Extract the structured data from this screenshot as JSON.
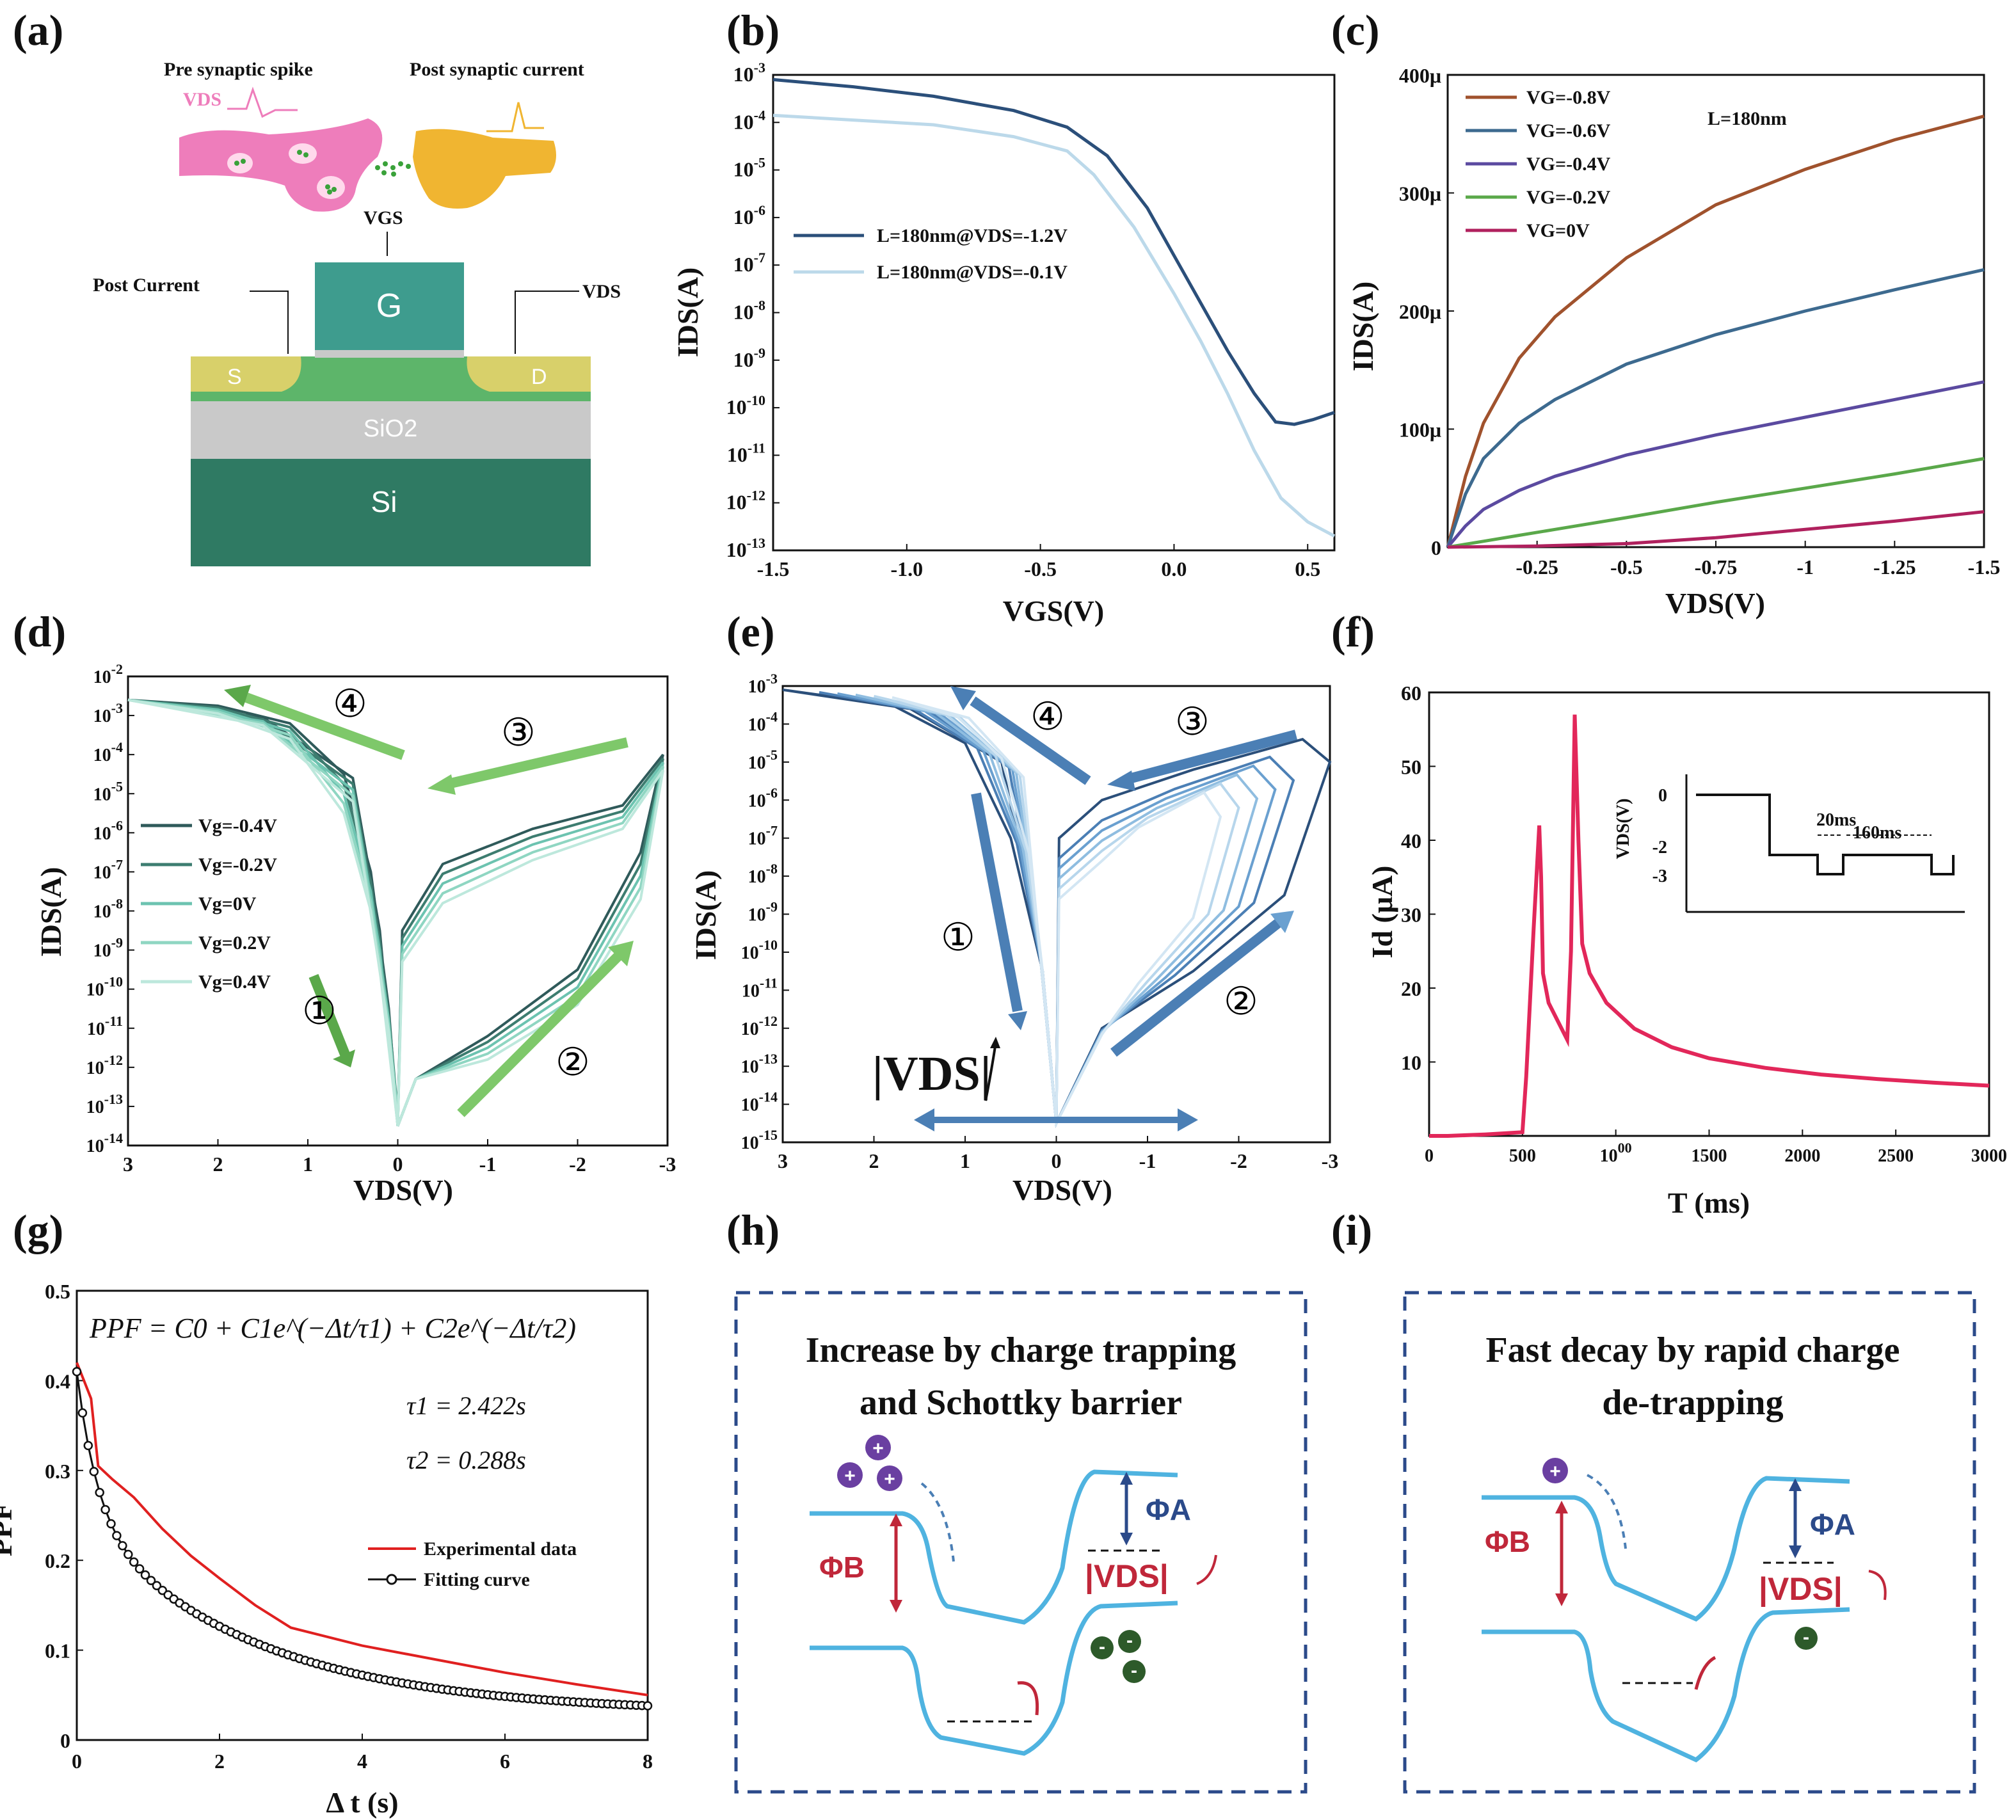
{
  "colors": {
    "pink": "#ee7dbb",
    "yellow": "#f0b531",
    "teal_gate": "#3e9c8e",
    "green_channel": "#5db56a",
    "sd_yellow": "#d8d06a",
    "oxide": "#c9c9c9",
    "silicon": "#2f7a63",
    "navy": "#2b4f7a",
    "light_blue": "#bcd9ea",
    "band": "#4fb3e0",
    "red": "#c0273a",
    "purple": "#6a3fa1",
    "dark_green": "#2d5a2a",
    "crimson": "#e2275a"
  },
  "panel_a": {
    "letter": "(a)",
    "pre_label": "Pre synaptic spike",
    "post_label": "Post synaptic current",
    "vds_small": "VDS",
    "vgs": "VGS",
    "post_current": "Post Current",
    "vds": "VDS",
    "gate": "G",
    "source": "S",
    "drain": "D",
    "oxide": "SiO2",
    "substrate": "Si"
  },
  "panel_b": {
    "letter": "(b)",
    "ylabel": "IDS(A)",
    "xlabel": "VGS(V)",
    "x_ticks": [
      "-1.5",
      "-1.0",
      "-0.5",
      "0.0",
      "0.5"
    ],
    "y_ticks": [
      "10-3",
      "10-4",
      "10-5",
      "10-6",
      "10-7",
      "10-8",
      "10-9",
      "10-10",
      "10-11",
      "10-12",
      "10-13"
    ],
    "legend": [
      "L=180nm@VDS=-1.2V",
      "L=180nm@VDS=-0.1V"
    ]
  },
  "panel_c": {
    "letter": "(c)",
    "ylabel": "IDS(A)",
    "xlabel": "VDS(V)",
    "x_ticks": [
      "-0.25",
      "-0.5",
      "-0.75",
      "-1",
      "-1.25",
      "-1.5"
    ],
    "y_ticks": [
      "0",
      "100μ",
      "200μ",
      "300μ",
      "400μ"
    ],
    "legend": [
      "VG=-0.8V",
      "VG=-0.6V",
      "VG=-0.4V",
      "VG=-0.2V",
      "VG=0V"
    ],
    "note": "L=180nm"
  },
  "panel_d": {
    "letter": "(d)",
    "ylabel": "IDS(A)",
    "xlabel": "VDS(V)",
    "x_ticks": [
      "3",
      "2",
      "1",
      "0",
      "-1",
      "-2",
      "-3"
    ],
    "y_ticks": [
      "10-2",
      "10-3",
      "10-4",
      "10-5",
      "10-6",
      "10-7",
      "10-8",
      "10-9",
      "10-10",
      "10-11",
      "10-12",
      "10-13",
      "10-14"
    ],
    "legend": [
      "Vg=-0.4V",
      "Vg=-0.2V",
      "Vg=0V",
      "Vg=0.2V",
      "Vg=0.4V"
    ],
    "markers": [
      "①",
      "②",
      "③",
      "④"
    ]
  },
  "panel_e": {
    "letter": "(e)",
    "ylabel": "IDS(A)",
    "xlabel": "VDS(V)",
    "x_ticks": [
      "3",
      "2",
      "1",
      "0",
      "-1",
      "-2",
      "-3"
    ],
    "y_ticks": [
      "10-3",
      "10-4",
      "10-5",
      "10-6",
      "10-7",
      "10-8",
      "10-9",
      "10-10",
      "10-11",
      "10-12",
      "10-13",
      "10-14",
      "10-15"
    ],
    "markers": [
      "①",
      "②",
      "③",
      "④"
    ],
    "vds_note": "|VDS|"
  },
  "panel_f": {
    "letter": "(f)",
    "ylabel": "Id (μA)",
    "xlabel": "T (ms)",
    "x_ticks": [
      "0",
      "500",
      "1000",
      "1500",
      "2000",
      "2500",
      "3000"
    ],
    "y_ticks": [
      "10",
      "20",
      "30",
      "40",
      "50",
      "60"
    ],
    "inset_ylabel": "VDS(V)",
    "inset_y_ticks": [
      "0",
      "-2",
      "-3"
    ],
    "inset_w1": "20ms",
    "inset_w2": "160ms"
  },
  "panel_g": {
    "letter": "(g)",
    "ylabel": "PPF",
    "xlabel": "Δ t (s)",
    "x_ticks": [
      "0",
      "2",
      "4",
      "6",
      "8"
    ],
    "y_ticks": [
      "0",
      "0.1",
      "0.2",
      "0.3",
      "0.4",
      "0.5"
    ],
    "formula": "PPF = C0 + C1e^(−Δt/τ1) + C2e^(−Δt/τ2)",
    "tau1": "τ1 = 2.422s",
    "tau2": "τ2 = 0.288s",
    "legend": [
      "Experimental data",
      "Fitting curve"
    ]
  },
  "panel_h": {
    "letter": "(h)",
    "title_l1": "Increase by charge trapping",
    "title_l2": "and Schottky barrier",
    "phi_b": "ΦB",
    "phi_a": "ΦA",
    "vds": "|VDS|"
  },
  "panel_i": {
    "letter": "(i)",
    "title_l1": "Fast decay by rapid charge",
    "title_l2": "de-trapping",
    "phi_b": "ΦB",
    "phi_a": "ΦA",
    "vds": "|VDS|"
  },
  "chart_data": [
    {
      "id": "b",
      "type": "line",
      "title": "",
      "xlabel": "VGS(V)",
      "ylabel": "IDS(A)",
      "xlim": [
        -1.5,
        0.6
      ],
      "ylim_log10": [
        -13,
        -3
      ],
      "series": [
        {
          "name": "L=180nm@VDS=-1.2V",
          "color": "#2b4f7a",
          "x": [
            -1.5,
            -1.2,
            -0.9,
            -0.6,
            -0.4,
            -0.25,
            -0.1,
            0.0,
            0.1,
            0.2,
            0.3,
            0.38,
            0.45,
            0.52,
            0.6
          ],
          "log10_y": [
            -3.1,
            -3.25,
            -3.45,
            -3.75,
            -4.1,
            -4.7,
            -5.8,
            -6.8,
            -7.8,
            -8.8,
            -9.7,
            -10.3,
            -10.35,
            -10.25,
            -10.1
          ]
        },
        {
          "name": "L=180nm@VDS=-0.1V",
          "color": "#bcd9ea",
          "x": [
            -1.5,
            -1.2,
            -0.9,
            -0.6,
            -0.4,
            -0.3,
            -0.15,
            0.0,
            0.1,
            0.2,
            0.3,
            0.4,
            0.5,
            0.6
          ],
          "log10_y": [
            -3.85,
            -3.95,
            -4.05,
            -4.3,
            -4.6,
            -5.1,
            -6.2,
            -7.6,
            -8.6,
            -9.7,
            -10.9,
            -11.9,
            -12.4,
            -12.7
          ]
        }
      ]
    },
    {
      "id": "c",
      "type": "line",
      "xlabel": "VDS(V)",
      "ylabel": "IDS(A)",
      "xlim": [
        0,
        -1.5
      ],
      "ylim_uA": [
        0,
        400
      ],
      "note": "L=180nm",
      "series": [
        {
          "name": "VG=-0.8V",
          "color": "#a0522d",
          "x": [
            0,
            -0.05,
            -0.1,
            -0.2,
            -0.3,
            -0.5,
            -0.75,
            -1.0,
            -1.25,
            -1.5
          ],
          "y_uA": [
            0,
            60,
            105,
            160,
            195,
            245,
            290,
            320,
            345,
            365
          ]
        },
        {
          "name": "VG=-0.6V",
          "color": "#3d6a8f",
          "x": [
            0,
            -0.05,
            -0.1,
            -0.2,
            -0.3,
            -0.5,
            -0.75,
            -1.0,
            -1.25,
            -1.5
          ],
          "y_uA": [
            0,
            45,
            75,
            105,
            125,
            155,
            180,
            200,
            218,
            235
          ]
        },
        {
          "name": "VG=-0.4V",
          "color": "#5b4aa0",
          "x": [
            0,
            -0.05,
            -0.1,
            -0.2,
            -0.3,
            -0.5,
            -0.75,
            -1.0,
            -1.25,
            -1.5
          ],
          "y_uA": [
            0,
            18,
            32,
            48,
            60,
            78,
            95,
            110,
            125,
            140
          ]
        },
        {
          "name": "VG=-0.2V",
          "color": "#5aa84a",
          "x": [
            0,
            -0.1,
            -0.2,
            -0.3,
            -0.5,
            -0.75,
            -1.0,
            -1.25,
            -1.5
          ],
          "y_uA": [
            0,
            5,
            10,
            15,
            25,
            38,
            50,
            62,
            75
          ]
        },
        {
          "name": "VG=0V",
          "color": "#b0215e",
          "x": [
            0,
            -0.25,
            -0.5,
            -0.75,
            -1.0,
            -1.25,
            -1.5
          ],
          "y_uA": [
            0,
            1,
            3,
            8,
            15,
            22,
            30
          ]
        }
      ]
    },
    {
      "id": "d",
      "type": "line",
      "xlabel": "VDS(V)",
      "ylabel": "IDS(A)",
      "xlim": [
        3,
        -3
      ],
      "ylim_log10": [
        -14,
        -2
      ],
      "series_names": [
        "Vg=-0.4V",
        "Vg=-0.2V",
        "Vg=0V",
        "Vg=0.2V",
        "Vg=0.4V"
      ]
    },
    {
      "id": "e",
      "type": "line",
      "xlabel": "VDS(V)",
      "ylabel": "IDS(A)",
      "xlim": [
        3,
        -3
      ],
      "ylim_log10": [
        -15,
        -3
      ]
    },
    {
      "id": "f",
      "type": "line",
      "xlabel": "T (ms)",
      "ylabel": "Id (μA)",
      "xlim": [
        0,
        3000
      ],
      "ylim": [
        0,
        60
      ],
      "series": [
        {
          "name": "Id",
          "color": "#e2275a",
          "x": [
            0,
            100,
            300,
            500,
            520,
            560,
            590,
            600,
            610,
            640,
            700,
            740,
            760,
            780,
            800,
            820,
            860,
            950,
            1100,
            1300,
            1500,
            1800,
            2100,
            2400,
            2700,
            3000
          ],
          "y": [
            0,
            0,
            0.2,
            0.5,
            8,
            28,
            42,
            35,
            22,
            18,
            15,
            13,
            25,
            57,
            40,
            26,
            22,
            18,
            14.5,
            12,
            10.5,
            9.2,
            8.3,
            7.7,
            7.2,
            6.8
          ]
        }
      ]
    },
    {
      "id": "g",
      "type": "line",
      "xlabel": "Δ t (s)",
      "ylabel": "PPF",
      "xlim": [
        0,
        8
      ],
      "ylim": [
        0,
        0.5
      ],
      "series": [
        {
          "name": "Experimental data",
          "color": "#e02020",
          "x": [
            0,
            0.1,
            0.2,
            0.3,
            0.5,
            0.8,
            1.2,
            1.6,
            2.0,
            2.5,
            3.0,
            4.0,
            5.0,
            6.0,
            7.0,
            8.0
          ],
          "y": [
            0.42,
            0.4,
            0.38,
            0.305,
            0.29,
            0.27,
            0.235,
            0.205,
            0.18,
            0.15,
            0.125,
            0.105,
            0.09,
            0.075,
            0.062,
            0.05
          ]
        },
        {
          "name": "Fitting curve",
          "color": "#111111",
          "fit": {
            "C0": 0.03,
            "C1": 0.22,
            "tau1": 2.422,
            "C2": 0.16,
            "tau2": 0.288
          }
        }
      ]
    }
  ]
}
